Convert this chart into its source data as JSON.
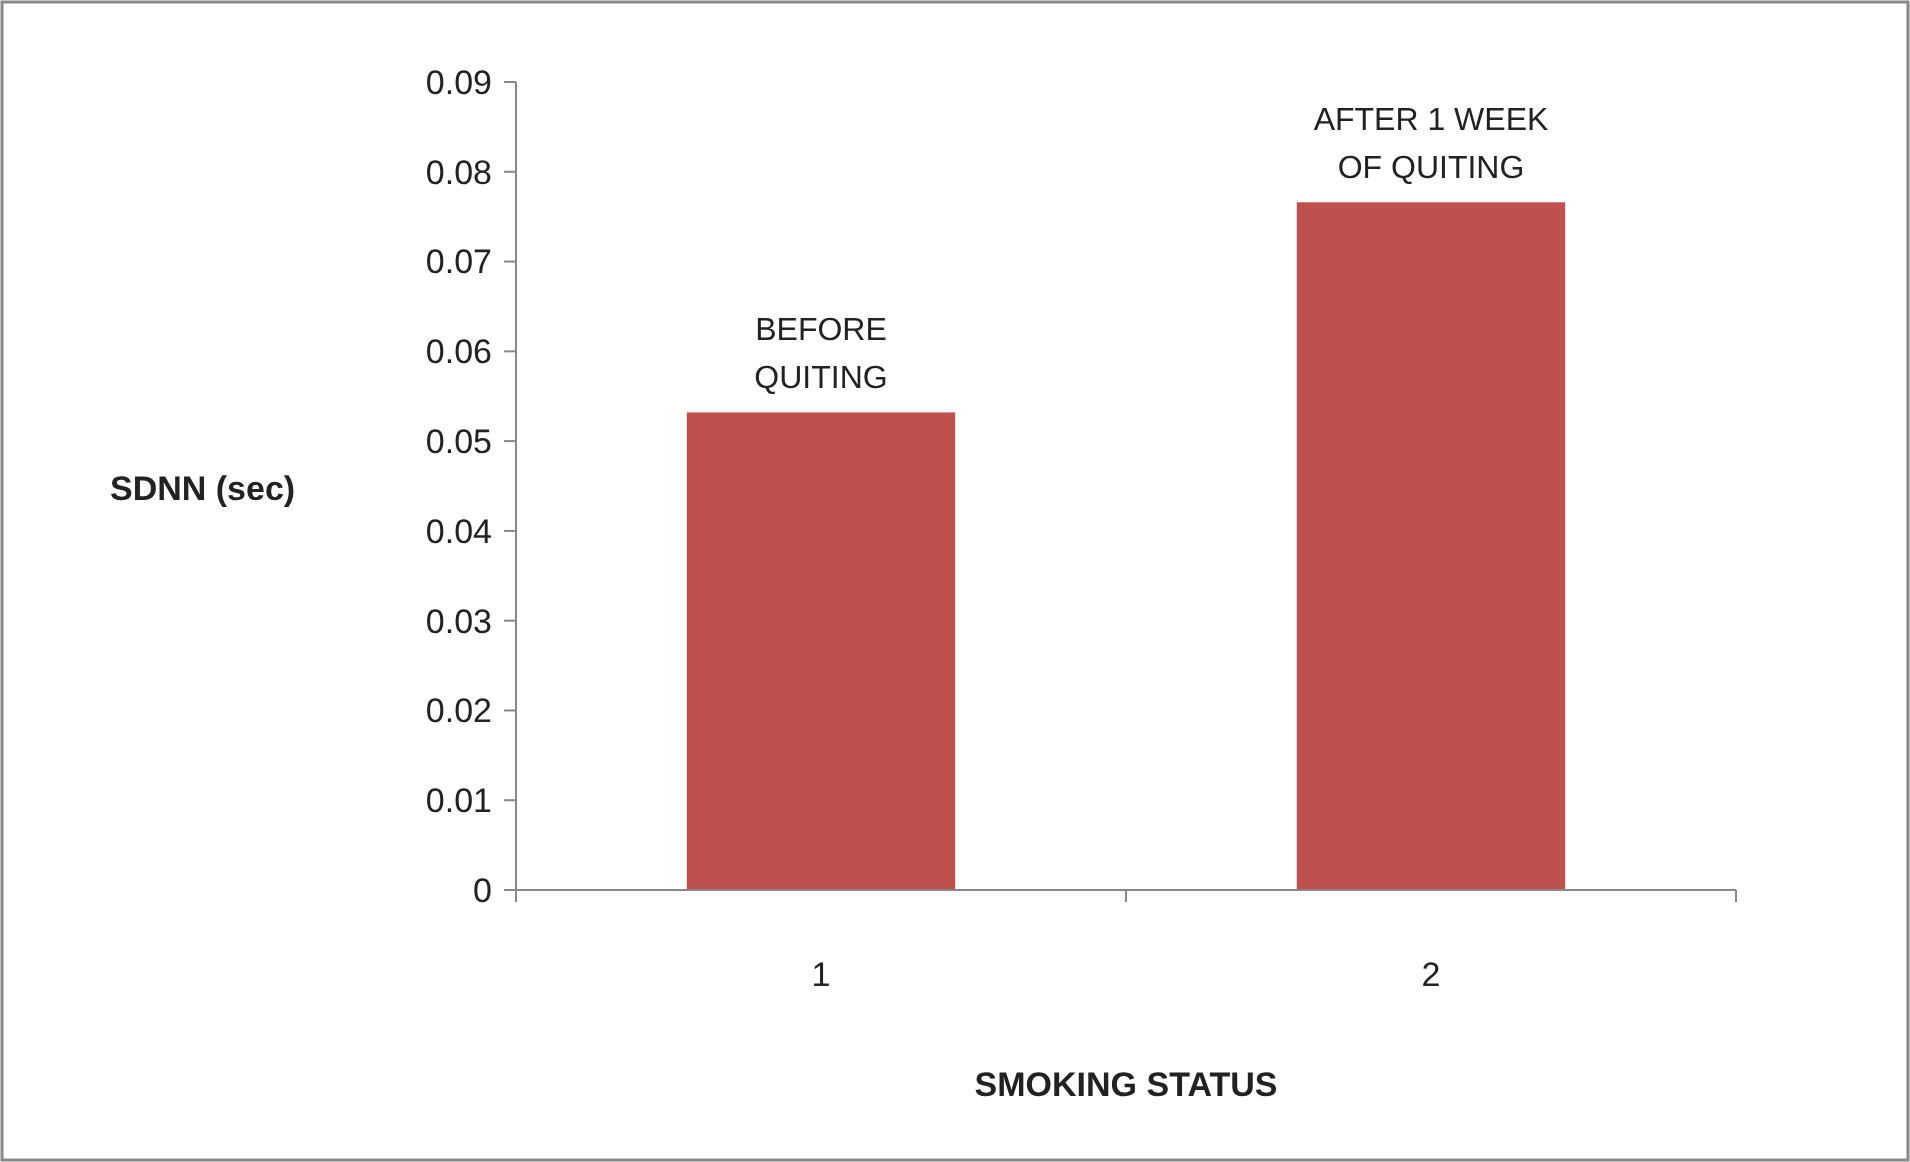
{
  "chart_data": {
    "type": "bar",
    "categories": [
      "1",
      "2"
    ],
    "values": [
      0.0532,
      0.0766
    ],
    "color": "#c0504d",
    "ylim": [
      0,
      0.09
    ],
    "yticks": [
      0,
      0.01,
      0.02,
      0.03,
      0.04,
      0.05,
      0.06,
      0.07,
      0.08,
      0.09
    ],
    "grid": false,
    "xlabel": "SMOKING STATUS",
    "ylabel": "SDNN (sec)",
    "annotations": [
      {
        "text": "BEFORE QUITING",
        "x": "1",
        "y": 0.0532
      },
      {
        "text": "AFTER 1 WEEK OF QUITING",
        "x": "2",
        "y": 0.0766
      }
    ]
  }
}
